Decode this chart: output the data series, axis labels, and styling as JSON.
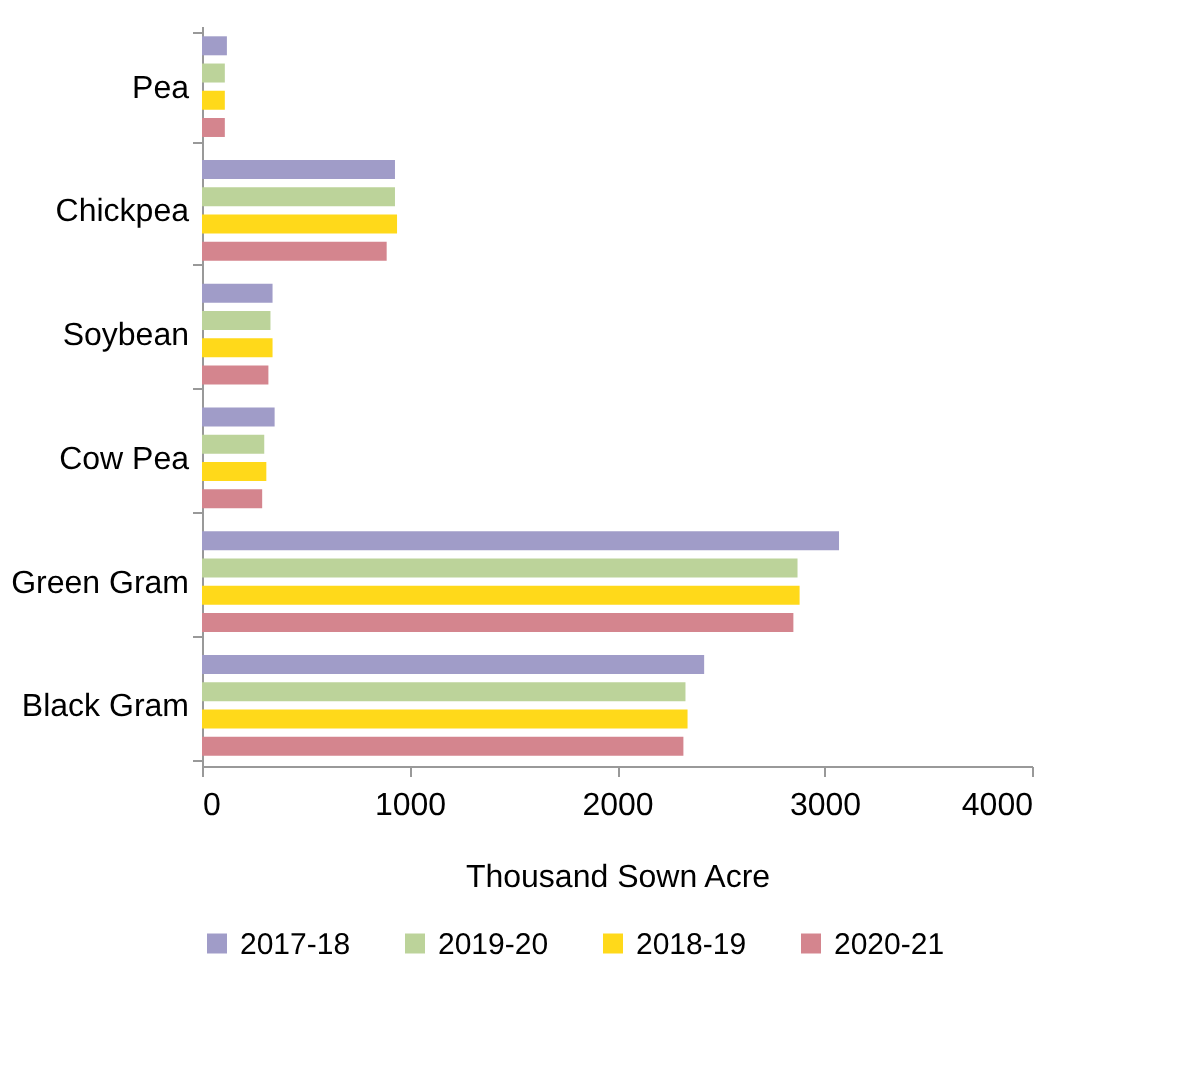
{
  "chart_data": {
    "type": "bar",
    "orientation": "horizontal",
    "xlabel": "Thousand Sown Acre",
    "categories": [
      "Pea",
      "Chickpea",
      "Soybean",
      "Cow Pea",
      "Green Gram",
      "Black Gram"
    ],
    "series": [
      {
        "name": "2017-18",
        "color": "#a09cc8",
        "values": [
          120,
          930,
          340,
          350,
          3070,
          2420
        ]
      },
      {
        "name": "2019-20",
        "color": "#bcd39a",
        "values": [
          110,
          930,
          330,
          300,
          2870,
          2330
        ]
      },
      {
        "name": "2018-19",
        "color": "#ffd91a",
        "values": [
          110,
          940,
          340,
          310,
          2880,
          2340
        ]
      },
      {
        "name": "2020-21",
        "color": "#d4858e",
        "values": [
          110,
          890,
          320,
          290,
          2850,
          2320
        ]
      }
    ],
    "xlim": [
      0,
      4000
    ],
    "xticks": [
      0,
      1000,
      2000,
      3000,
      4000
    ],
    "grid": false,
    "legend": "bottom"
  }
}
